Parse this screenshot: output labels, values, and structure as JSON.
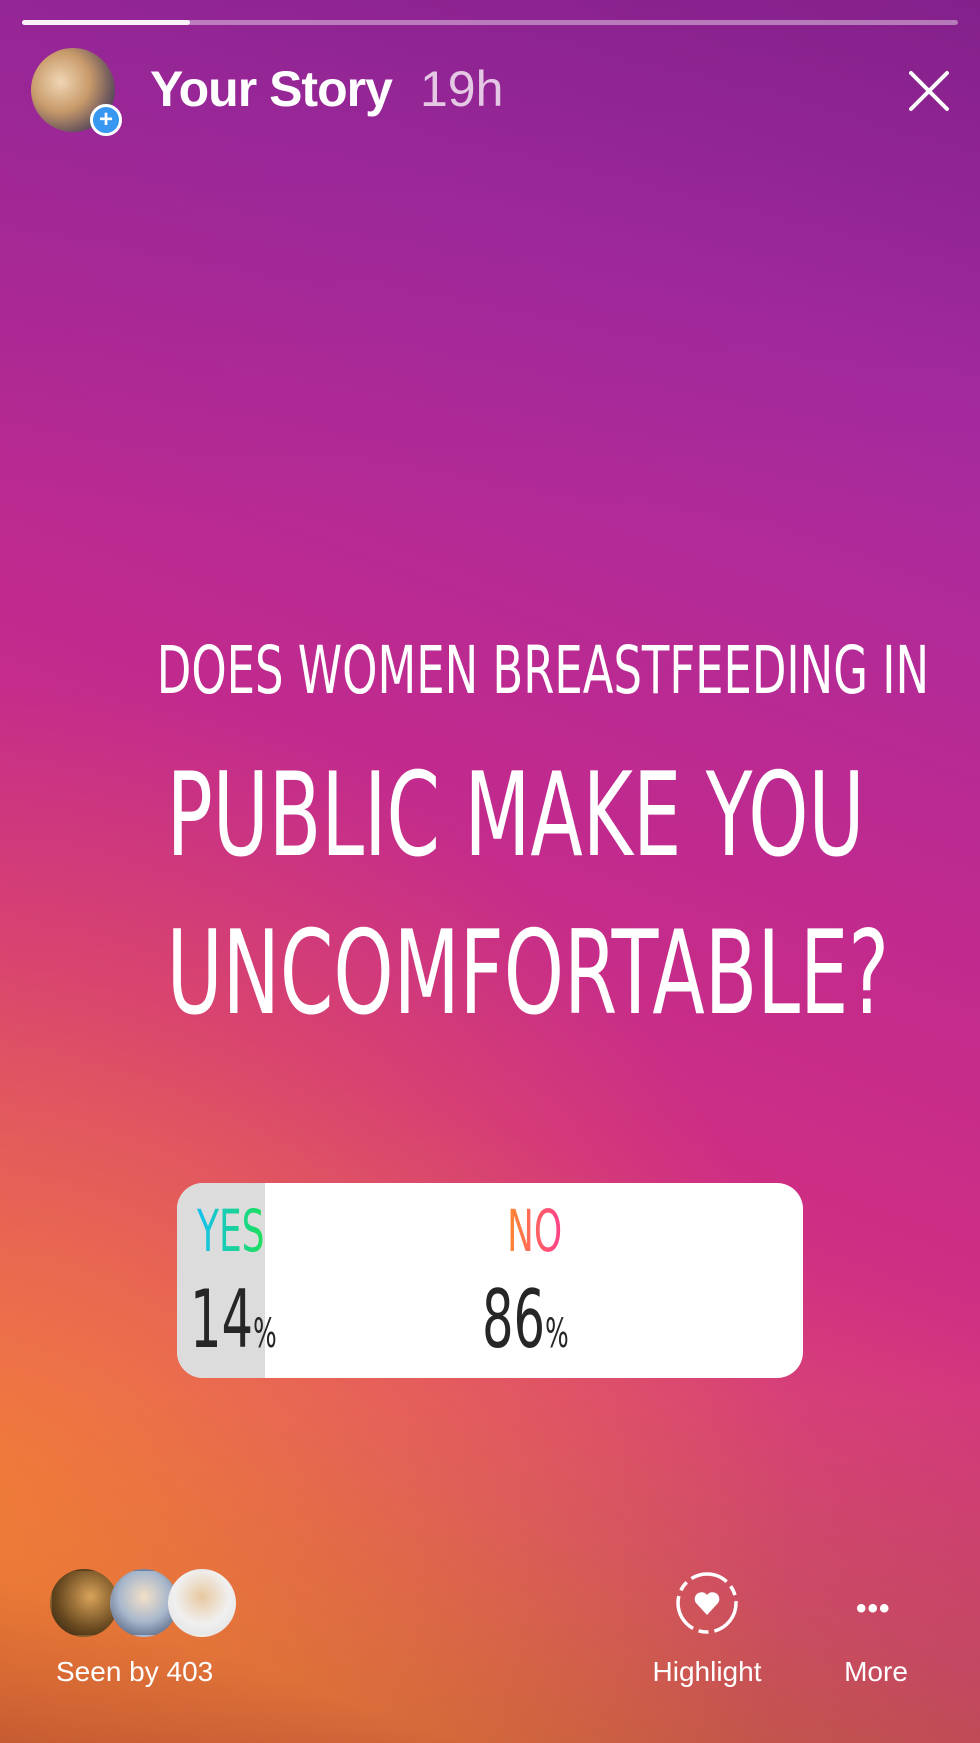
{
  "header": {
    "title": "Your Story",
    "time": "19h",
    "progress": 0.18,
    "avatar_icon": "add-story-plus-icon",
    "close_icon": "close-icon"
  },
  "question": {
    "line1": "DOES WOMEN BREASTFEEDING IN",
    "line2": "PUBLIC MAKE YOU",
    "line3": "UNCOMFORTABLE?"
  },
  "poll": {
    "options": [
      {
        "label": "YES",
        "percent": "14",
        "unit": "%"
      },
      {
        "label": "NO",
        "percent": "86",
        "unit": "%"
      }
    ],
    "yes_share": 14
  },
  "footer": {
    "seen_by": "Seen by 403",
    "highlight": "Highlight",
    "more": "More",
    "more_glyph": "•••"
  },
  "colors": {
    "accent": "#3897f0",
    "yes_gradient": [
      "#15c0f0",
      "#1ce05a"
    ],
    "no_gradient": [
      "#ff8a30",
      "#ff3f8c"
    ]
  }
}
